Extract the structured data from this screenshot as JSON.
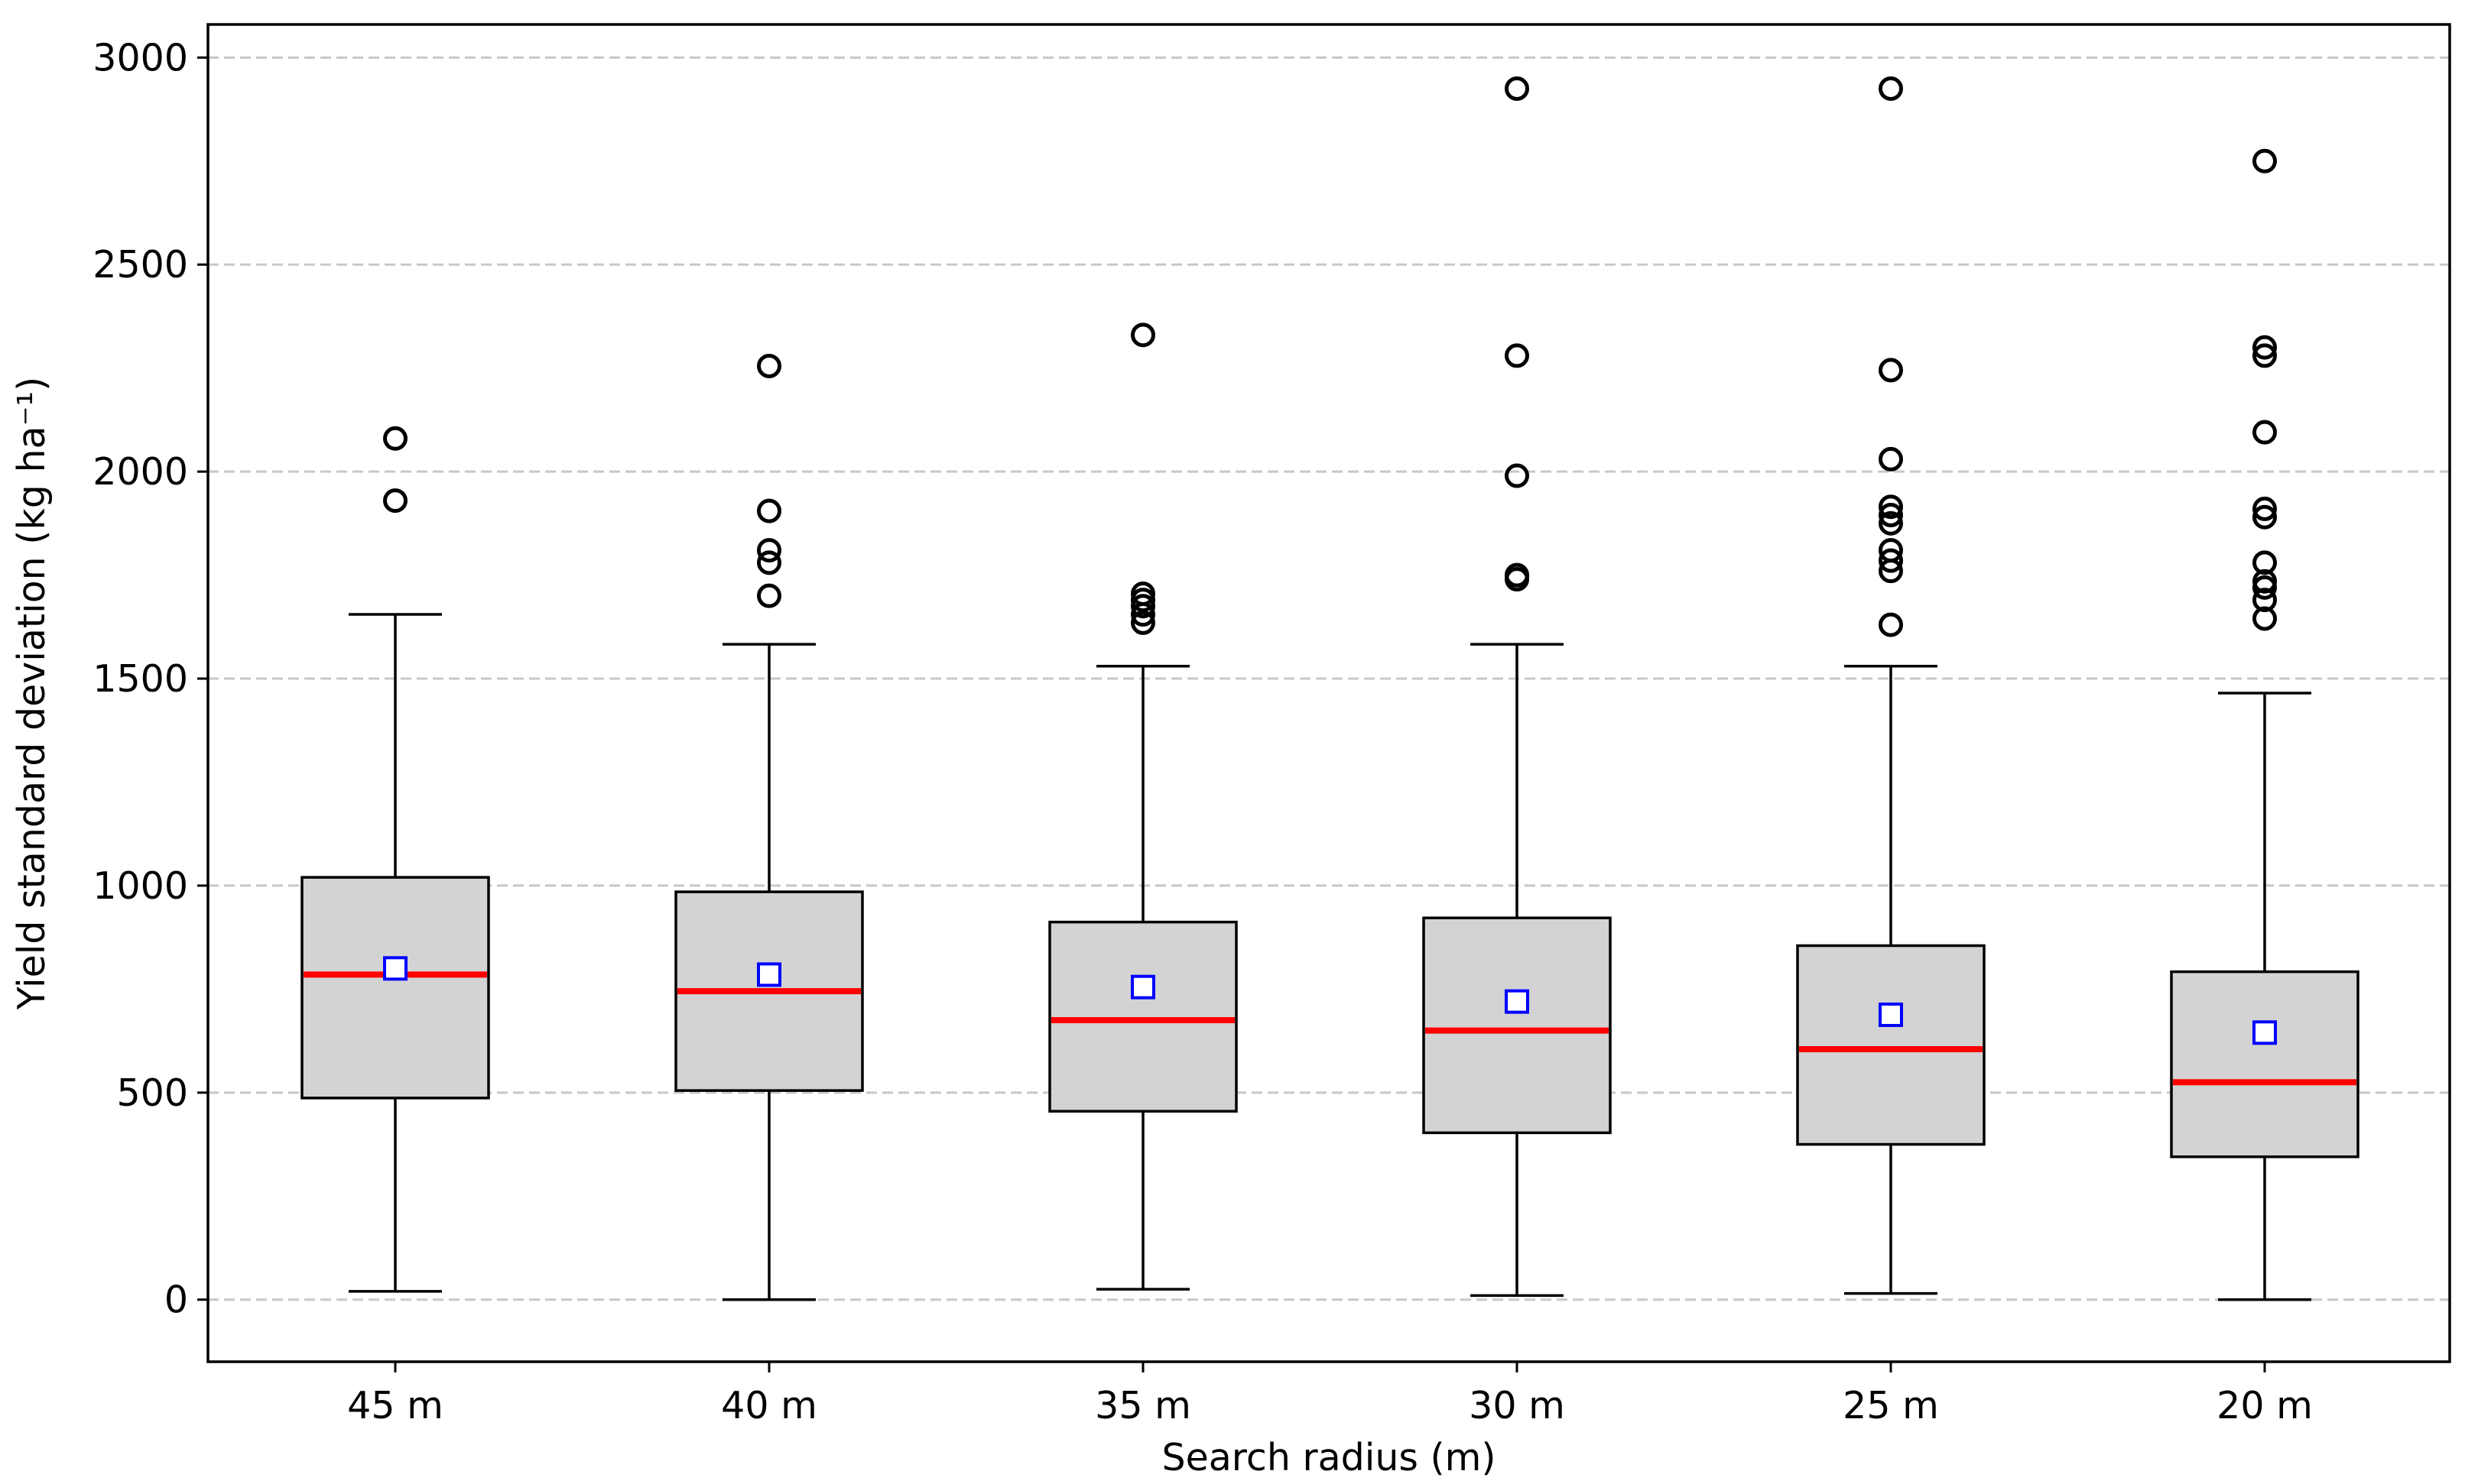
{
  "chart_data": {
    "type": "box",
    "xlabel": "Search radius (m)",
    "ylabel": "Yield standard deviation (kg ha⁻¹)",
    "ylim": [
      -150,
      3080
    ],
    "yticks": [
      0,
      500,
      1000,
      1500,
      2000,
      2500,
      3000
    ],
    "grid": "horizontal-dashed",
    "categories": [
      "45 m",
      "40 m",
      "35 m",
      "30 m",
      "25 m",
      "20 m"
    ],
    "boxes": [
      {
        "category": "45 m",
        "whisker_low": 20,
        "q1": 487,
        "median": 785,
        "mean": 800,
        "q3": 1020,
        "whisker_high": 1655,
        "outliers": [
          1930,
          2080
        ]
      },
      {
        "category": "40 m",
        "whisker_low": 0,
        "q1": 505,
        "median": 745,
        "mean": 785,
        "q3": 985,
        "whisker_high": 1583,
        "outliers": [
          1700,
          1780,
          1810,
          1905,
          2255
        ]
      },
      {
        "category": "35 m",
        "whisker_low": 25,
        "q1": 455,
        "median": 675,
        "mean": 755,
        "q3": 912,
        "whisker_high": 1530,
        "outliers": [
          1635,
          1655,
          1675,
          1690,
          1705,
          2330
        ]
      },
      {
        "category": "30 m",
        "whisker_low": 10,
        "q1": 403,
        "median": 650,
        "mean": 720,
        "q3": 922,
        "whisker_high": 1583,
        "outliers": [
          1740,
          1750,
          1990,
          2280,
          2925
        ]
      },
      {
        "category": "25 m",
        "whisker_low": 15,
        "q1": 375,
        "median": 605,
        "mean": 688,
        "q3": 855,
        "whisker_high": 1530,
        "outliers": [
          1630,
          1760,
          1785,
          1810,
          1875,
          1895,
          1915,
          2030,
          2245,
          2925
        ]
      },
      {
        "category": "20 m",
        "whisker_low": 0,
        "q1": 345,
        "median": 525,
        "mean": 645,
        "q3": 792,
        "whisker_high": 1465,
        "outliers": [
          1645,
          1690,
          1720,
          1735,
          1780,
          1890,
          1910,
          2095,
          2280,
          2300,
          2750
        ]
      }
    ],
    "colors": {
      "box_fill": "#d3d3d3",
      "box_edge": "#000000",
      "median": "#ff0000",
      "mean_marker": "#0000ff",
      "grid": "#c8c8c8"
    }
  }
}
